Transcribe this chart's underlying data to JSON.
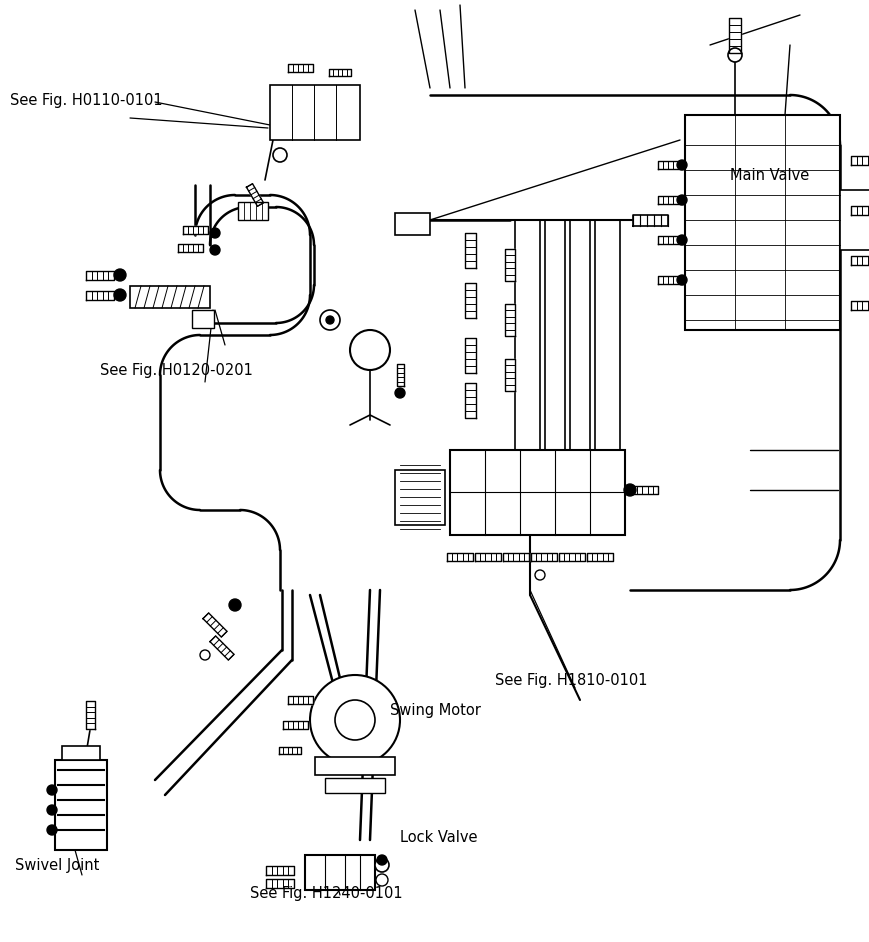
{
  "bg_color": "#ffffff",
  "line_color": "#000000",
  "labels": {
    "see_fig_h0110": "See Fig. H0110-0101",
    "see_fig_h0120": "See Fig. H0120-0201",
    "see_fig_h1810": "See Fig. H1810-0101",
    "see_fig_h1240": "See Fig. H1240-0101",
    "main_valve": "Main Valve",
    "swing_motor": "Swing Motor",
    "swivel_joint": "Swivel Joint",
    "lock_valve": "Lock Valve"
  }
}
